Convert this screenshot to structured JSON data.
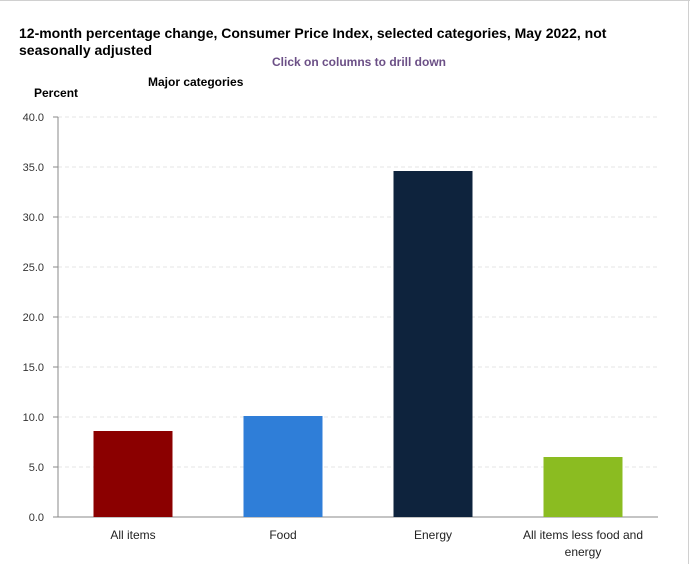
{
  "chart_data": {
    "type": "bar",
    "title": "12-month percentage change, Consumer Price Index, selected categories, May 2022, not seasonally adjusted",
    "subtitle": "Major categories",
    "hint": "Click on columns to drill down",
    "ylabel": "Percent",
    "xlabel": "",
    "ylim": [
      0,
      40
    ],
    "yticks": [
      "0.0",
      "5.0",
      "10.0",
      "15.0",
      "20.0",
      "25.0",
      "30.0",
      "35.0",
      "40.0"
    ],
    "grid": true,
    "categories": [
      [
        "All items"
      ],
      [
        "Food"
      ],
      [
        "Energy"
      ],
      [
        "All items less food and",
        "energy"
      ]
    ],
    "values": [
      8.6,
      10.1,
      34.6,
      6.0
    ],
    "colors": [
      "#8b0000",
      "#2f7ed8",
      "#0e233d",
      "#8bbc21"
    ]
  }
}
